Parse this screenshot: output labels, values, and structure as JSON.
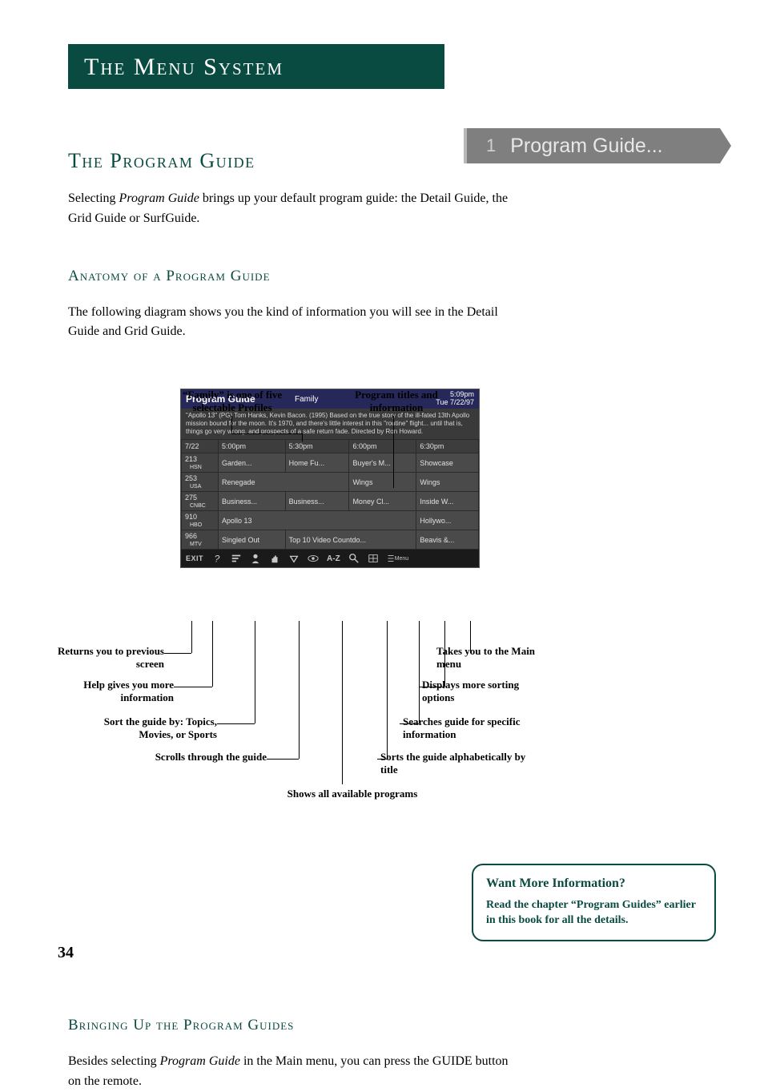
{
  "colors": {
    "brand_green": "#0a4b41",
    "banner_gray": "#7f7f7f",
    "guide_header_blue": "#26285a",
    "guide_cell_gray": "#4a4a4a",
    "guide_synopsis_bg": "#3a3a3a",
    "toolbar_bg": "#1a1a1a",
    "page_bg": "#ffffff",
    "text_color": "#000000"
  },
  "page_number": "34",
  "title_bar": "The Menu System",
  "banner": {
    "num": "1",
    "label": "Program Guide..."
  },
  "section1": {
    "heading": "The Program Guide",
    "body_prefix": "Selecting ",
    "body_italic": "Program Guide",
    "body_suffix": " brings up your default program guide: the Detail Guide, the Grid Guide or SurfGuide."
  },
  "section2": {
    "heading": "Anatomy of a Program Guide",
    "body": "The following diagram shows you the kind of information you will see in the Detail Guide and Grid Guide."
  },
  "top_callouts": {
    "left": "“Family” is one of five selectable Profiles",
    "right": "Program titles and information"
  },
  "guide": {
    "title": "Program Guide",
    "profile": "Family",
    "clock_time": "5:09pm",
    "clock_date": "Tue 7/22/97",
    "synopsis": "\"Apollo 13\" (PG) Tom Hanks, Kevin Bacon. (1995) Based on the true story of the ill-fated 13th Apollo mission bound for the moon. It's 1970, and there's little interest in this \"routine\" flight... until that is, things go very wrong, and prospects of a safe return fade. Directed by Ron Howard.",
    "time_headers": [
      "7/22",
      "5:00pm",
      "5:30pm",
      "6:00pm",
      "6:30pm"
    ],
    "rows": [
      {
        "channel_num": "213",
        "channel_name": "HSN",
        "cells": [
          "Garden...",
          "Home Fu...",
          "Buyer's M...",
          "Showcase"
        ]
      },
      {
        "channel_num": "253",
        "channel_name": "USA",
        "cells": [
          {
            "text": "Renegade",
            "span": 2
          },
          "Wings",
          "Wings"
        ]
      },
      {
        "channel_num": "275",
        "channel_name": "CNBC",
        "cells": [
          "Business...",
          "Business...",
          "Money Cl...",
          "Inside W..."
        ]
      },
      {
        "channel_num": "910",
        "channel_name": "HBO",
        "cells": [
          {
            "text": "Apollo 13",
            "span": 3
          },
          "Hollywo..."
        ]
      },
      {
        "channel_num": "966",
        "channel_name": "MTV",
        "cells": [
          "Singled Out",
          {
            "text": "Top 10 Video Countdo...",
            "span": 2
          },
          "Beavis &..."
        ]
      }
    ],
    "toolbar": {
      "exit": "EXIT",
      "icons": [
        "?",
        "sort",
        "person",
        "hand",
        "down",
        "eye",
        "AZ",
        "search",
        "grid",
        "menu"
      ],
      "menu_label": "Menu"
    }
  },
  "bottom_annots": {
    "exit": "Returns you to previous screen",
    "help": "Help gives you more information",
    "sort": "Sort the guide by: Topics, Movies, or Sports",
    "scroll": "Scrolls through the guide",
    "all": "Shows all available programs",
    "az": "Sorts the guide alphabetically by title",
    "search": "Searches guide for specific information",
    "more": "Displays more sorting options",
    "menu": "Takes you to the Main menu"
  },
  "section3": {
    "heading": "Bringing Up the Program Guides",
    "body_prefix": "Besides selecting ",
    "body_italic": "Program Guide",
    "body_suffix": " in the Main menu, you can press the GUIDE button on the remote."
  },
  "info_box": {
    "title": "Want More Information?",
    "body": "Read the chapter “Program Guides” earlier in this book for all the details."
  }
}
